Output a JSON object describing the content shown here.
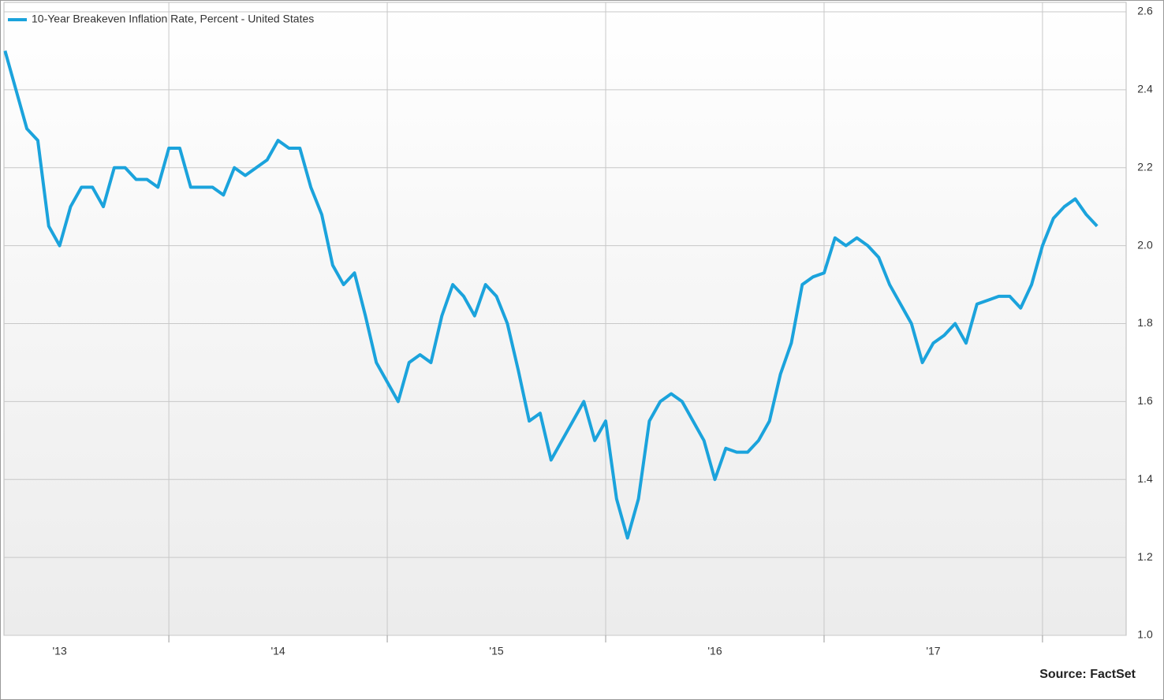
{
  "chart_data": {
    "type": "line",
    "legend": "top-left",
    "source": "Source: FactSet",
    "x": [
      2013.25,
      2013.3,
      2013.35,
      2013.4,
      2013.45,
      2013.5,
      2013.55,
      2013.6,
      2013.65,
      2013.7,
      2013.75,
      2013.8,
      2013.85,
      2013.9,
      2013.95,
      2014,
      2014.05,
      2014.1,
      2014.15,
      2014.2,
      2014.25,
      2014.3,
      2014.35,
      2014.4,
      2014.45,
      2014.5,
      2014.55,
      2014.6,
      2014.65,
      2014.7,
      2014.75,
      2014.8,
      2014.85,
      2014.9,
      2014.95,
      2015,
      2015.05,
      2015.1,
      2015.15,
      2015.2,
      2015.25,
      2015.3,
      2015.35,
      2015.4,
      2015.45,
      2015.5,
      2015.55,
      2015.6,
      2015.65,
      2015.7,
      2015.75,
      2015.8,
      2015.85,
      2015.9,
      2015.95,
      2016,
      2016.05,
      2016.1,
      2016.15,
      2016.2,
      2016.25,
      2016.3,
      2016.35,
      2016.4,
      2016.45,
      2016.5,
      2016.55,
      2016.6,
      2016.65,
      2016.7,
      2016.75,
      2016.8,
      2016.85,
      2016.9,
      2016.95,
      2017,
      2017.05,
      2017.1,
      2017.15,
      2017.2,
      2017.25,
      2017.3,
      2017.35,
      2017.4,
      2017.45,
      2017.5,
      2017.55,
      2017.6,
      2017.65,
      2017.7,
      2017.75,
      2017.8,
      2017.85,
      2017.9,
      2017.95,
      2018,
      2018.05,
      2018.1,
      2018.15,
      2018.2,
      2018.25
    ],
    "series": [
      {
        "name": "10-Year Breakeven Inflation Rate, Percent - United States",
        "color": "#1ba3dc",
        "values": [
          2.5,
          2.4,
          2.3,
          2.27,
          2.05,
          2.0,
          2.1,
          2.15,
          2.15,
          2.1,
          2.2,
          2.2,
          2.17,
          2.17,
          2.15,
          2.25,
          2.25,
          2.15,
          2.15,
          2.15,
          2.13,
          2.2,
          2.18,
          2.2,
          2.22,
          2.27,
          2.25,
          2.25,
          2.15,
          2.08,
          1.95,
          1.9,
          1.93,
          1.82,
          1.7,
          1.65,
          1.6,
          1.7,
          1.72,
          1.7,
          1.82,
          1.9,
          1.87,
          1.82,
          1.9,
          1.87,
          1.8,
          1.68,
          1.55,
          1.57,
          1.45,
          1.5,
          1.55,
          1.6,
          1.5,
          1.55,
          1.35,
          1.25,
          1.35,
          1.55,
          1.6,
          1.62,
          1.6,
          1.55,
          1.5,
          1.4,
          1.48,
          1.47,
          1.47,
          1.5,
          1.55,
          1.67,
          1.75,
          1.9,
          1.92,
          1.93,
          2.02,
          2.0,
          2.02,
          2.0,
          1.97,
          1.9,
          1.85,
          1.8,
          1.7,
          1.75,
          1.77,
          1.8,
          1.75,
          1.85,
          1.86,
          1.87,
          1.87,
          1.84,
          1.9,
          2.0,
          2.07,
          2.1,
          2.12,
          2.08,
          2.05
        ]
      }
    ],
    "xlim": [
      2013.245,
      2018.383
    ],
    "xticks": [
      {
        "value": 2013.5,
        "label": "'13"
      },
      {
        "value": 2014.5,
        "label": "'14"
      },
      {
        "value": 2015.5,
        "label": "'15"
      },
      {
        "value": 2016.5,
        "label": "'16"
      },
      {
        "value": 2017.5,
        "label": "'17"
      }
    ],
    "xgrid": [
      2014,
      2015,
      2016,
      2017,
      2018
    ],
    "ylim": [
      1.0,
      2.6
    ],
    "yticks": [
      {
        "value": 1,
        "label": "1.0"
      },
      1.2,
      1.4,
      1.6,
      1.8,
      {
        "value": 2,
        "label": "2.0"
      },
      2.2,
      2.4,
      2.6
    ],
    "grid": true
  }
}
